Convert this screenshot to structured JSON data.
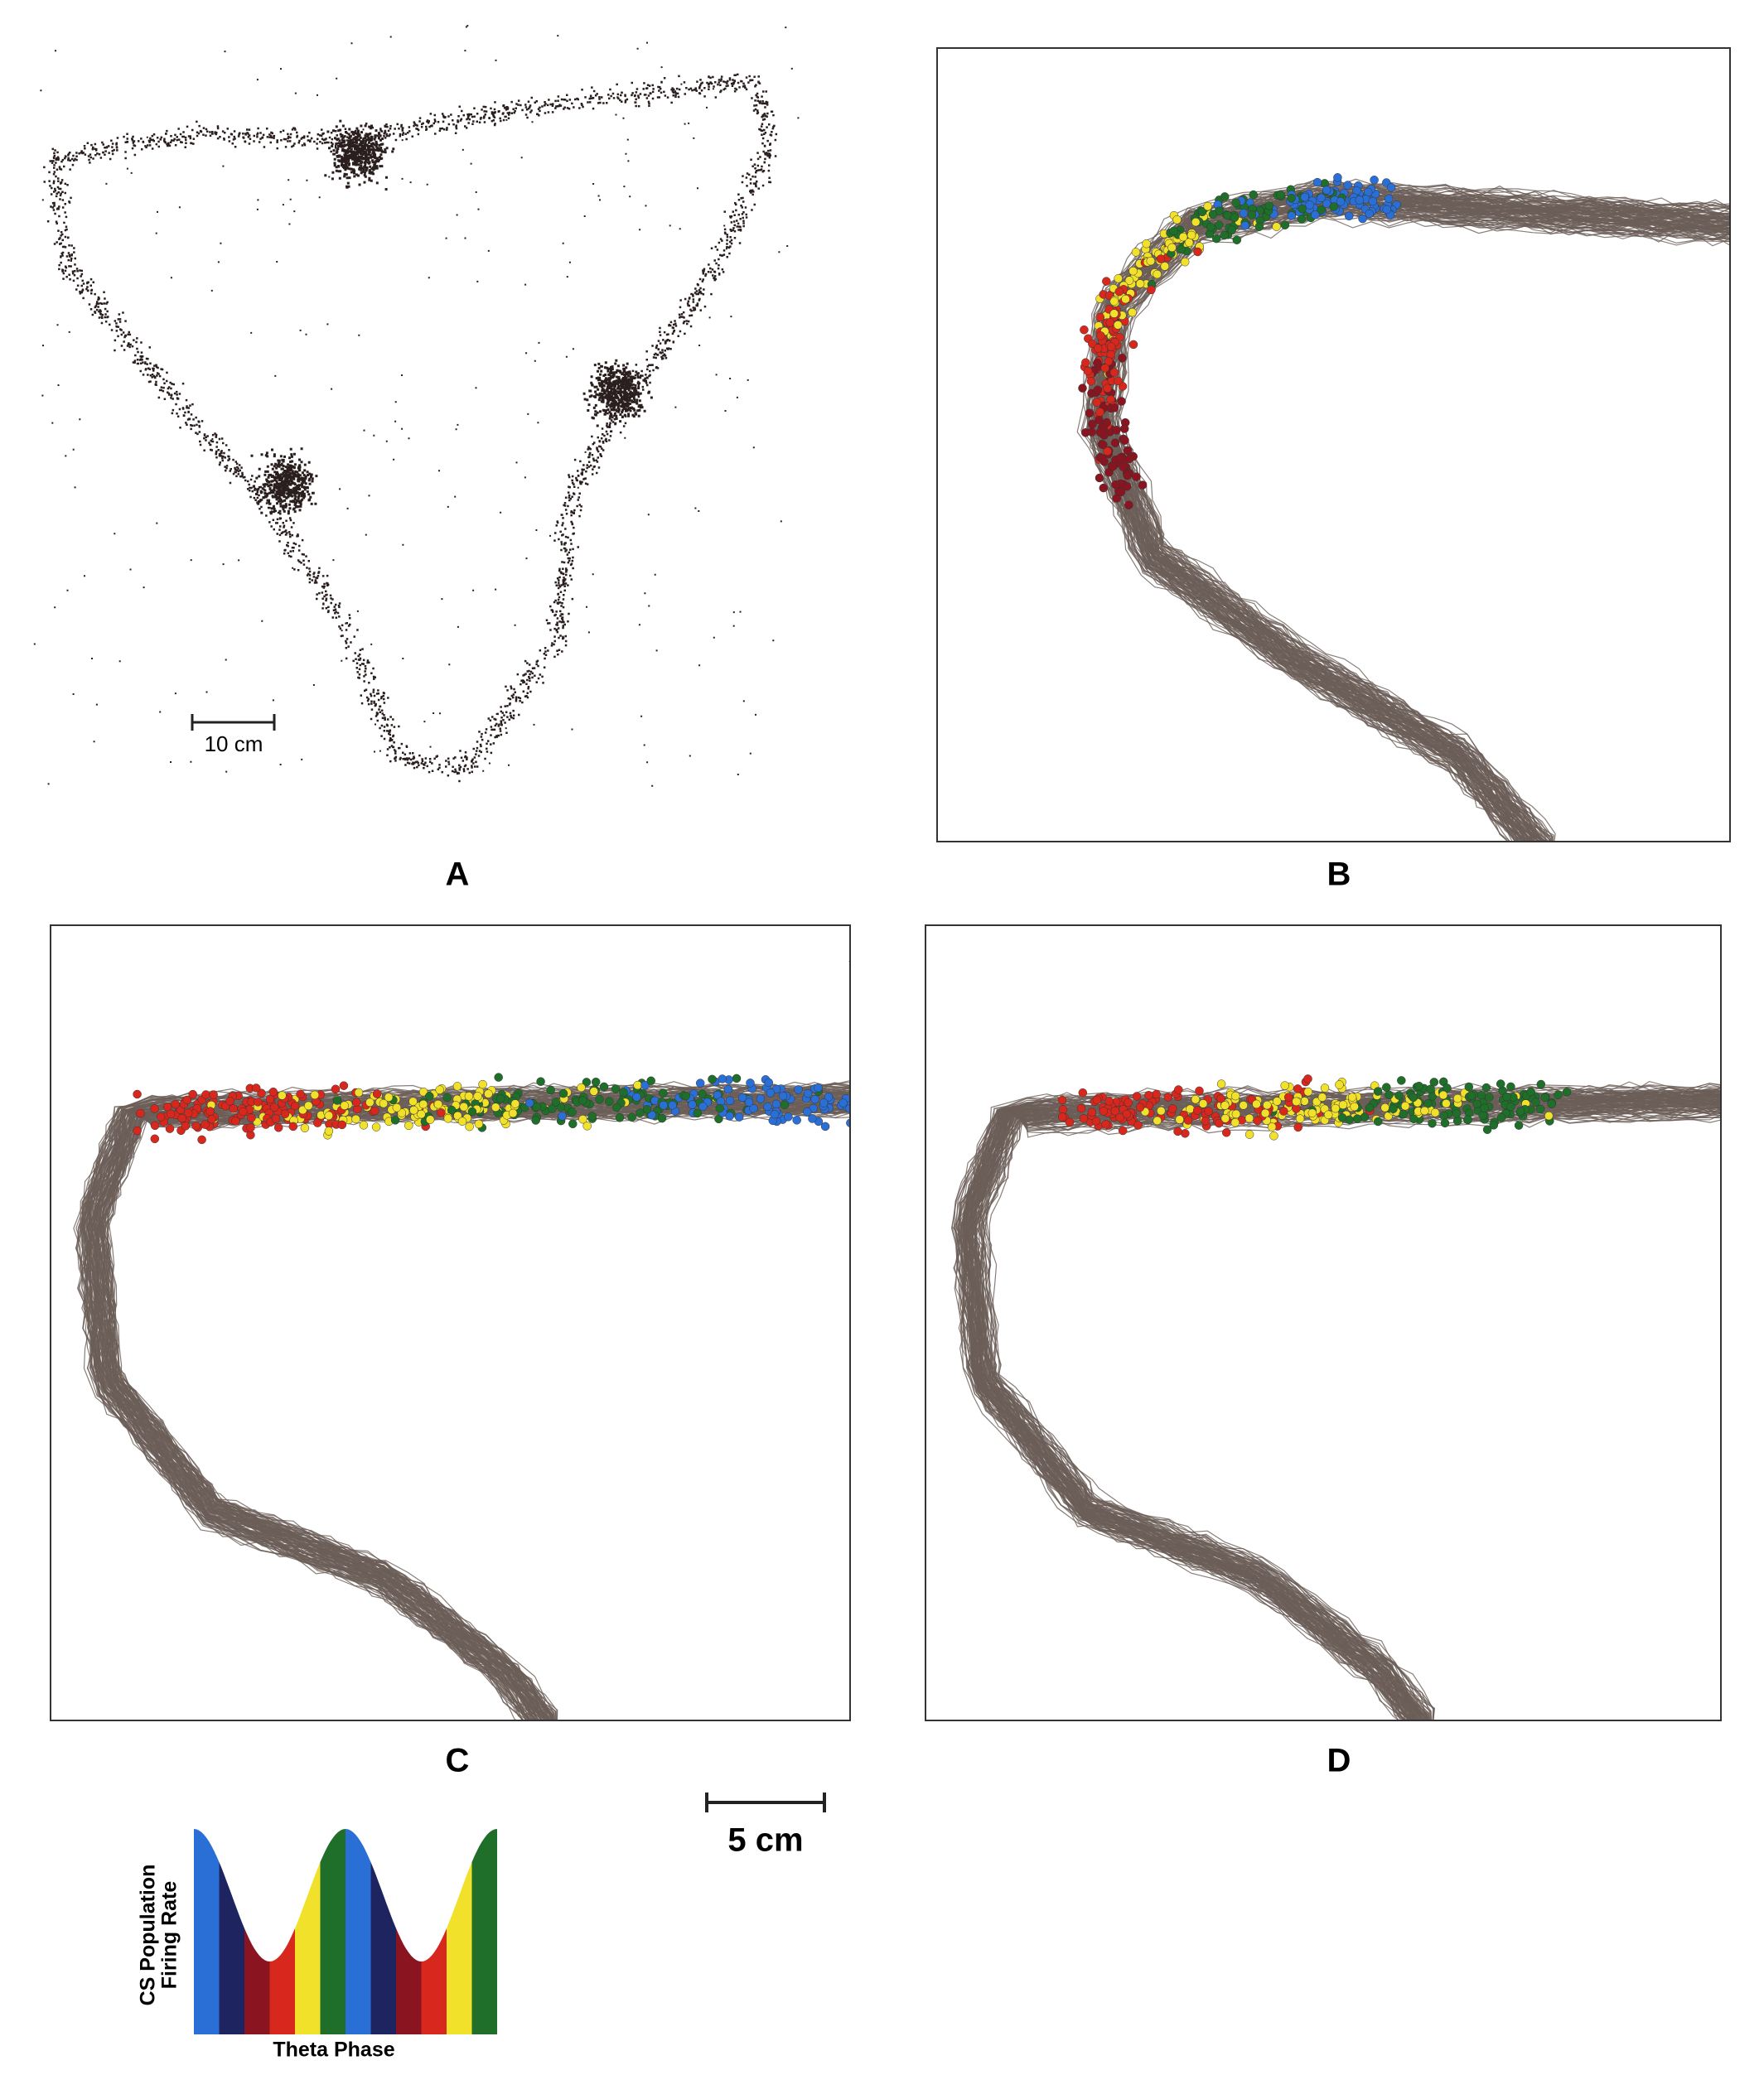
{
  "panels": [
    {
      "label": "A",
      "scale_label": "10 cm"
    },
    {
      "label": "B"
    },
    {
      "label": "C"
    },
    {
      "label": "D"
    }
  ],
  "scale_bar": {
    "label": "5 cm"
  },
  "legend": {
    "y_label_lines": [
      "CS Population",
      "Firing Rate"
    ],
    "x_label": "Theta Phase"
  }
}
